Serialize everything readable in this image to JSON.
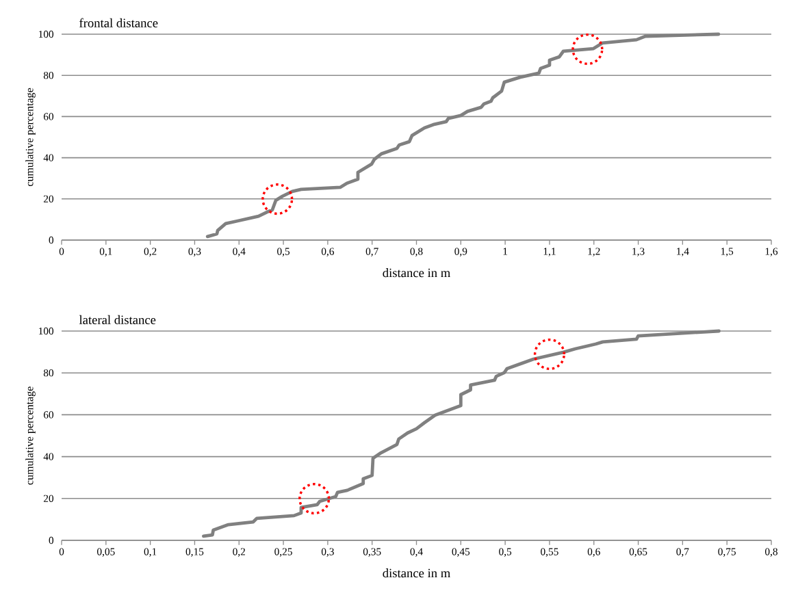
{
  "chart_data": [
    {
      "type": "line",
      "title": "frontal distance",
      "xlabel": "distance in m",
      "ylabel": "cumulative percentage",
      "color": "#808080",
      "grid": "y",
      "line_style": "solid",
      "xlim": [
        0,
        1.6
      ],
      "ylim": [
        0,
        100
      ],
      "xticks": [
        0,
        {
          "value": 0.1,
          "label": "0,1"
        },
        {
          "value": 0.2,
          "label": "0,2"
        },
        {
          "value": 0.3,
          "label": "0,3"
        },
        {
          "value": 0.4,
          "label": "0,4"
        },
        {
          "value": 0.5,
          "label": "0,5"
        },
        {
          "value": 0.6,
          "label": "0,6"
        },
        {
          "value": 0.7,
          "label": "0,7"
        },
        {
          "value": 0.8,
          "label": "0,8"
        },
        {
          "value": 0.9,
          "label": "0,9"
        },
        1,
        {
          "value": 1.1,
          "label": "1,1"
        },
        {
          "value": 1.2,
          "label": "1,2"
        },
        {
          "value": 1.3,
          "label": "1,3"
        },
        {
          "value": 1.4,
          "label": "1,4"
        },
        {
          "value": 1.5,
          "label": "1,5"
        },
        {
          "value": 1.6,
          "label": "1,6"
        }
      ],
      "yticks": [
        0,
        20,
        40,
        60,
        80,
        100
      ],
      "x": [
        0.329,
        0.35,
        0.352,
        0.37,
        0.397,
        0.444,
        0.463,
        0.475,
        0.483,
        0.498,
        0.52,
        0.54,
        0.628,
        0.643,
        0.668,
        0.668,
        0.699,
        0.705,
        0.721,
        0.756,
        0.761,
        0.784,
        0.79,
        0.818,
        0.838,
        0.867,
        0.872,
        0.9,
        0.915,
        0.946,
        0.952,
        0.968,
        0.972,
        0.992,
        0.998,
        1.034,
        1.076,
        1.08,
        1.1,
        1.1,
        1.122,
        1.131,
        1.199,
        1.219,
        1.296,
        1.316,
        1.481
      ],
      "values": [
        1.7,
        3,
        4.7,
        8,
        9.3,
        11.6,
        13.6,
        14.6,
        19.3,
        21.3,
        23.6,
        24.6,
        25.6,
        27.6,
        29.6,
        32.9,
        36.9,
        39.2,
        41.9,
        44.5,
        46.2,
        47.8,
        50.8,
        54.5,
        56.1,
        57.5,
        59.1,
        60.5,
        62.5,
        64.5,
        66.1,
        67.4,
        69.1,
        72.4,
        76.7,
        79.1,
        81.1,
        83.4,
        85,
        87.4,
        89,
        91.7,
        93,
        95.7,
        97.3,
        99,
        100
      ]
    },
    {
      "type": "line",
      "title": "lateral distance",
      "xlabel": "distance in m",
      "ylabel": "cumulative percentage",
      "color": "#808080",
      "grid": "y",
      "line_style": "solid",
      "xlim": [
        0,
        0.8
      ],
      "ylim": [
        0,
        100
      ],
      "xticks": [
        0,
        {
          "value": 0.05,
          "label": "0,05"
        },
        {
          "value": 0.1,
          "label": "0,1"
        },
        {
          "value": 0.15,
          "label": "0,15"
        },
        {
          "value": 0.2,
          "label": "0,2"
        },
        {
          "value": 0.25,
          "label": "0,25"
        },
        {
          "value": 0.3,
          "label": "0,3"
        },
        {
          "value": 0.35,
          "label": "0,35"
        },
        {
          "value": 0.4,
          "label": "0,4"
        },
        {
          "value": 0.45,
          "label": "0,45"
        },
        {
          "value": 0.5,
          "label": "0,5"
        },
        {
          "value": 0.55,
          "label": "0,55"
        },
        {
          "value": 0.6,
          "label": "0,6"
        },
        {
          "value": 0.65,
          "label": "0,65"
        },
        {
          "value": 0.7,
          "label": "0,7"
        },
        {
          "value": 0.75,
          "label": "0,75"
        },
        {
          "value": 0.8,
          "label": "0,8"
        }
      ],
      "yticks": [
        0,
        20,
        40,
        60,
        80,
        100
      ],
      "x": [
        0.16,
        0.17,
        0.171,
        0.188,
        0.216,
        0.22,
        0.262,
        0.27,
        0.27,
        0.288,
        0.291,
        0.309,
        0.311,
        0.322,
        0.34,
        0.34,
        0.35,
        0.351,
        0.36,
        0.378,
        0.38,
        0.39,
        0.4,
        0.409,
        0.421,
        0.45,
        0.45,
        0.461,
        0.461,
        0.488,
        0.49,
        0.499,
        0.502,
        0.532,
        0.566,
        0.579,
        0.602,
        0.61,
        0.648,
        0.65,
        0.741
      ],
      "values": [
        2,
        2.6,
        4.9,
        7.5,
        8.8,
        10.5,
        11.8,
        13.1,
        15.7,
        17,
        18.6,
        20.9,
        22.9,
        23.9,
        27.1,
        29.4,
        31,
        39.2,
        41.8,
        45.8,
        48.4,
        51.3,
        53.3,
        56.2,
        59.8,
        64.4,
        69.6,
        71.9,
        74.2,
        76.5,
        78.4,
        80.1,
        82,
        86.6,
        89.9,
        91.5,
        93.8,
        94.8,
        96.1,
        97.7,
        100
      ]
    }
  ]
}
